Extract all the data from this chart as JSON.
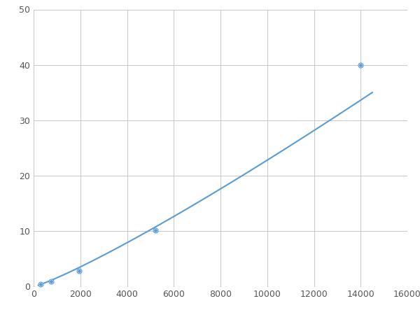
{
  "x_points": [
    300,
    750,
    1950,
    5200,
    14000
  ],
  "y_points": [
    0.5,
    1.0,
    2.8,
    10.2,
    40.0
  ],
  "line_color": "#5b9bd5",
  "marker_color": "#5b9bd5",
  "marker_size": 5,
  "line_width": 1.5,
  "xlim": [
    0,
    16000
  ],
  "ylim": [
    0,
    50
  ],
  "xticks": [
    0,
    2000,
    4000,
    6000,
    8000,
    10000,
    12000,
    14000,
    16000
  ],
  "yticks": [
    0,
    10,
    20,
    30,
    40,
    50
  ],
  "grid_color": "#c8c8c8",
  "background_color": "#ffffff",
  "fig_width": 6.0,
  "fig_height": 4.5,
  "dpi": 100
}
